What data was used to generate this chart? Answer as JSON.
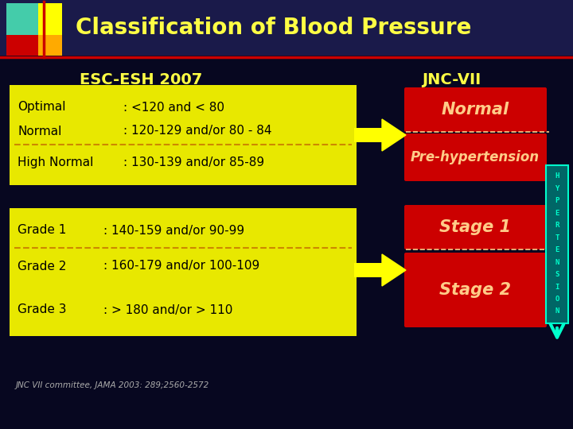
{
  "bg_color": "#070720",
  "title": "Classification of Blood Pressure",
  "title_color": "#ffff44",
  "title_fontsize": 20,
  "esc_label": "ESC-ESH 2007",
  "jnc_label": "JNC-VII",
  "label_color": "#ffff44",
  "label_fontsize": 14,
  "yellow_box_color": "#e8e800",
  "red_box_color": "#cc0000",
  "esc_rows_top": [
    [
      "Optimal",
      ": <120 and < 80"
    ],
    [
      "Normal",
      ": 120-129 and/or 80 - 84"
    ],
    [
      "High Normal",
      ": 130-139 and/or 85-89"
    ]
  ],
  "esc_rows_bottom": [
    [
      "Grade 1",
      ": 140-159 and/or 90-99"
    ],
    [
      "Grade 2",
      ": 160-179 and/or 100-109"
    ],
    [
      "Grade 3",
      ": > 180 and/or > 110"
    ]
  ],
  "jnc_top": [
    "Normal",
    "Pre-hypertension"
  ],
  "jnc_bottom": [
    "Stage 1",
    "Stage 2"
  ],
  "jnc_text_color": "#ffcc88",
  "arrow_color": "#ffff00",
  "hyper_color": "#00ffcc",
  "hyper_text": [
    "H",
    "Y",
    "P",
    "E",
    "R",
    "T",
    "E",
    "N",
    "S",
    "I",
    "O",
    "N"
  ],
  "footnote": "JNC VII committee, JAMA 2003: 289;2560-2572",
  "footnote_color": "#aaaaaa",
  "dashed_color": "#cc8800",
  "logo_colors": [
    "#44ccaa",
    "#ffff00",
    "#cc0000",
    "#ffaa00"
  ],
  "title_bar_color": "#1a1a4a"
}
